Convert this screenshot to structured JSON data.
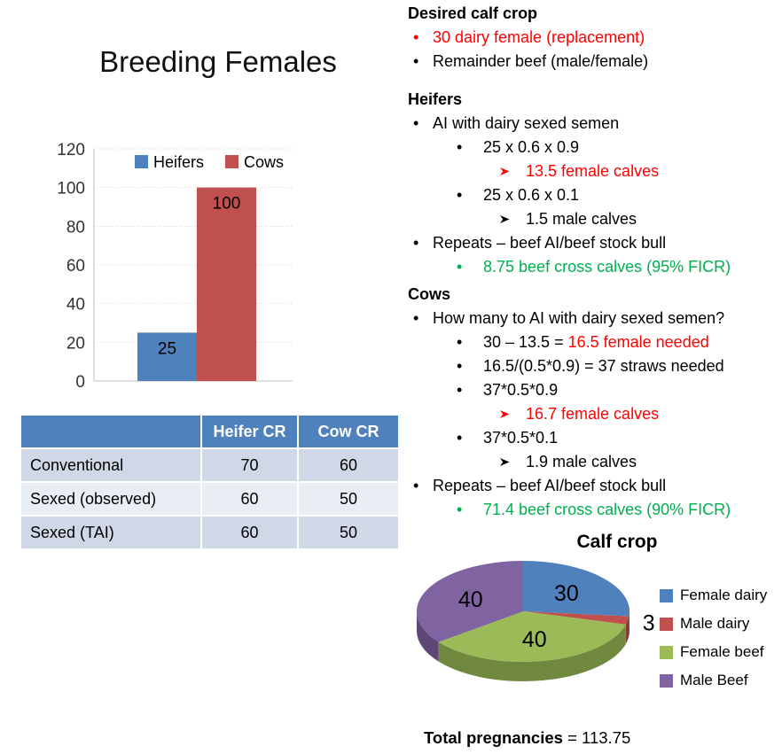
{
  "slide": {
    "title": "Breeding Females"
  },
  "chart_data": [
    {
      "type": "bar",
      "title": "",
      "categories": [
        ""
      ],
      "series": [
        {
          "name": "Heifers",
          "values": [
            25
          ],
          "color": "#4F81BD"
        },
        {
          "name": "Cows",
          "values": [
            100
          ],
          "color": "#C0504D"
        }
      ],
      "ylim": [
        0,
        120
      ],
      "ytick_step": 20,
      "grid": true,
      "legend_position": "top-center-inside",
      "data_labels": [
        25,
        100
      ]
    },
    {
      "type": "pie",
      "style": "3d",
      "title": "Calf crop",
      "labels": [
        "Female dairy",
        "Male dairy",
        "Female beef",
        "Male Beef"
      ],
      "values": [
        30,
        3,
        40,
        40
      ],
      "colors": [
        "#4F81BD",
        "#C0504D",
        "#9BBB59",
        "#8064A2"
      ],
      "side_colors": [
        "#385D8A",
        "#8C3836",
        "#71893F",
        "#5D4776"
      ],
      "start_angle_deg": 0,
      "direction": "clockwise",
      "legend_position": "right"
    }
  ],
  "cr_table": {
    "columns": [
      "",
      "Heifer CR",
      "Cow CR"
    ],
    "rows": [
      {
        "label": "Conventional",
        "heifer_cr": "70",
        "cow_cr": "60"
      },
      {
        "label": "Sexed (observed)",
        "heifer_cr": "60",
        "cow_cr": "50"
      },
      {
        "label": "Sexed (TAI)",
        "heifer_cr": "60",
        "cow_cr": "50"
      }
    ],
    "header_bg": "#4F81BD",
    "band_colors": [
      "#D0D8E8",
      "#E9EDF4"
    ]
  },
  "notes": {
    "sections": [
      {
        "heading": "Desired calf crop",
        "items": [
          {
            "level": 1,
            "marker": "dot",
            "marker_color": "red",
            "parts": [
              {
                "text": "30 dairy female (replacement)",
                "color": "red"
              }
            ]
          },
          {
            "level": 1,
            "marker": "dot",
            "marker_color": "black",
            "parts": [
              {
                "text": "Remainder beef (male/female)",
                "color": "black"
              }
            ]
          }
        ]
      },
      {
        "heading": "Heifers",
        "items": [
          {
            "level": 1,
            "marker": "dot",
            "marker_color": "black",
            "parts": [
              {
                "text": "AI with dairy sexed semen",
                "color": "black"
              }
            ]
          },
          {
            "level": 2,
            "marker": "dot",
            "marker_color": "black",
            "parts": [
              {
                "text": "25 x 0.6 x 0.9",
                "color": "black"
              }
            ]
          },
          {
            "level": 3,
            "marker": "arrow",
            "marker_color": "red",
            "parts": [
              {
                "text": "13.5 female calves",
                "color": "red"
              }
            ]
          },
          {
            "level": 2,
            "marker": "dot",
            "marker_color": "black",
            "parts": [
              {
                "text": "25 x 0.6 x 0.1",
                "color": "black"
              }
            ]
          },
          {
            "level": 3,
            "marker": "arrow",
            "marker_color": "black",
            "parts": [
              {
                "text": "1.5 male calves",
                "color": "black"
              }
            ]
          },
          {
            "level": 1,
            "marker": "dot",
            "marker_color": "black",
            "parts": [
              {
                "text": "Repeats – beef AI/beef stock bull",
                "color": "black"
              }
            ]
          },
          {
            "level": 2,
            "marker": "dot",
            "marker_color": "green",
            "parts": [
              {
                "text": "8.75 beef cross calves (95% FICR)",
                "color": "green"
              }
            ]
          }
        ]
      },
      {
        "heading": "Cows",
        "items": [
          {
            "level": 1,
            "marker": "dot",
            "marker_color": "black",
            "parts": [
              {
                "text": "How many to AI with dairy sexed semen?",
                "color": "black"
              }
            ]
          },
          {
            "level": 2,
            "marker": "dot",
            "marker_color": "black",
            "parts": [
              {
                "text": "30 – 13.5 = ",
                "color": "black"
              },
              {
                "text": "16.5 female needed",
                "color": "red"
              }
            ]
          },
          {
            "level": 2,
            "marker": "dot",
            "marker_color": "black",
            "parts": [
              {
                "text": "16.5/(0.5*0.9) = 37 straws needed",
                "color": "black"
              }
            ]
          },
          {
            "level": 2,
            "marker": "dot",
            "marker_color": "black",
            "parts": [
              {
                "text": "37*0.5*0.9",
                "color": "black"
              }
            ]
          },
          {
            "level": 3,
            "marker": "arrow",
            "marker_color": "red",
            "parts": [
              {
                "text": "16.7 female calves",
                "color": "red"
              }
            ]
          },
          {
            "level": 2,
            "marker": "dot",
            "marker_color": "black",
            "parts": [
              {
                "text": "37*0.5*0.1",
                "color": "black"
              }
            ]
          },
          {
            "level": 3,
            "marker": "arrow",
            "marker_color": "black",
            "parts": [
              {
                "text": "1.9 male calves",
                "color": "black"
              }
            ]
          },
          {
            "level": 1,
            "marker": "dot",
            "marker_color": "black",
            "parts": [
              {
                "text": "Repeats – beef AI/beef stock bull",
                "color": "black"
              }
            ]
          },
          {
            "level": 2,
            "marker": "dot",
            "marker_color": "green",
            "parts": [
              {
                "text": "71.4 beef cross calves (90% FICR)",
                "color": "green"
              }
            ]
          }
        ]
      }
    ]
  },
  "total": {
    "label_bold": "Total pregnancies",
    "value": "= 113.75"
  },
  "colors": {
    "text_red": "#FF0000",
    "text_green": "#00B050",
    "grid": "#D4D4D4",
    "axis": "#BFBFBF"
  }
}
